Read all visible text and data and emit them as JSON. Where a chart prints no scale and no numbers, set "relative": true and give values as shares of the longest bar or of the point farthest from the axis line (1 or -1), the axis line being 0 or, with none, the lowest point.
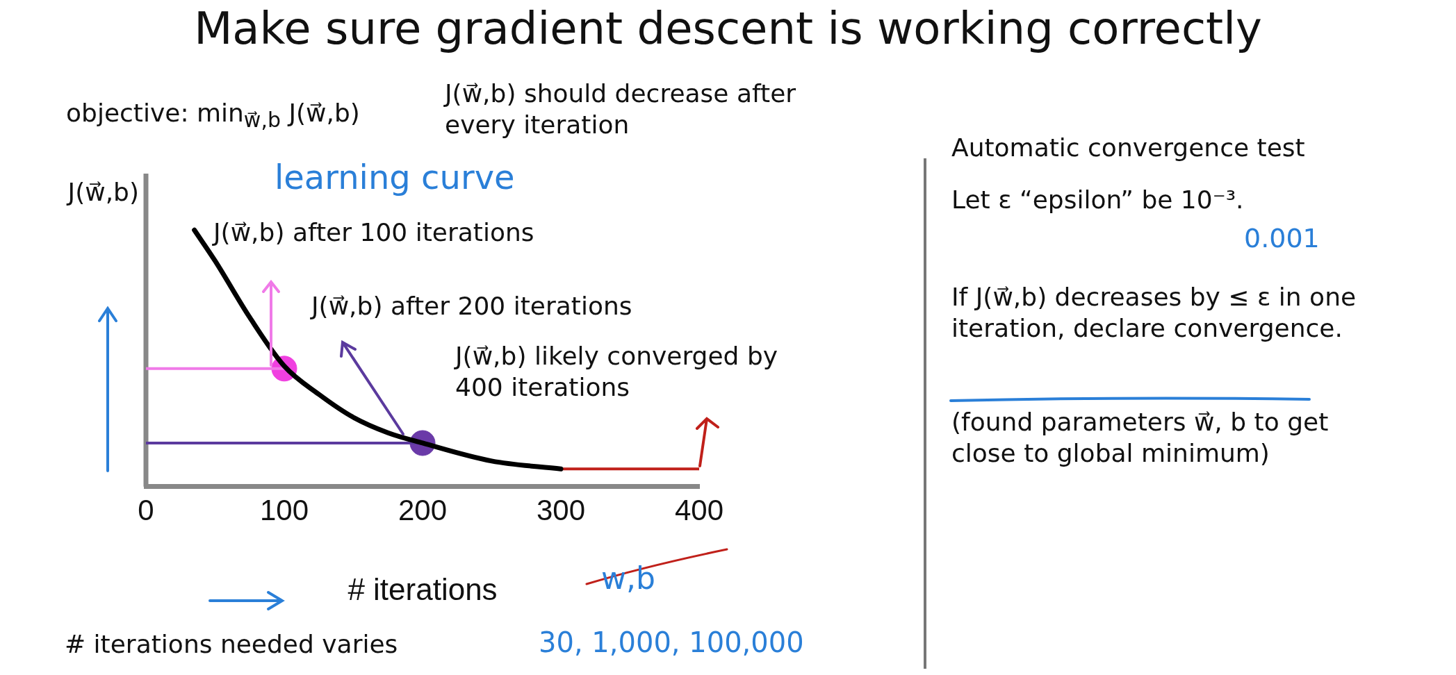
{
  "chart_data": {
    "type": "line",
    "title": "Make sure gradient descent is working correctly",
    "xlabel": "# iterations",
    "ylabel": "J(w⃗,b)",
    "relative": true,
    "xlim": [
      0,
      400
    ],
    "ref_lines": [
      {
        "axis": "x",
        "value": 0,
        "color": "#888888",
        "line_style": "solid"
      }
    ],
    "xticks": [
      0,
      100,
      200,
      300,
      400
    ],
    "grid": false,
    "legend": false,
    "marker": "none",
    "line_style": "solid",
    "series": [
      {
        "color": "#000000",
        "x": [
          35,
          50,
          75,
          100,
          125,
          150,
          175,
          200,
          250,
          300
        ],
        "values": [
          1.0,
          0.88,
          0.66,
          0.47,
          0.36,
          0.27,
          0.21,
          0.17,
          0.1,
          0.069
        ]
      },
      {
        "color": "#c0201a",
        "x": [
          300,
          400
        ],
        "values": [
          0.069,
          0.069
        ]
      },
      {
        "color": "#f07ae8",
        "x": [
          0,
          100
        ],
        "values": [
          0.46,
          0.46
        ]
      },
      {
        "color": "#5b3a9e",
        "x": [
          0,
          200
        ],
        "values": [
          0.17,
          0.17
        ]
      },
      {
        "type": "scatter",
        "marker": "circle",
        "x": [
          100,
          200
        ],
        "values": [
          0.46,
          0.17
        ],
        "colors": [
          "#f040e0",
          "#6a3aa8"
        ]
      }
    ],
    "annotations": [
      "objective: min$_{w⃗,b}$ J(w⃗,b)",
      "J(w⃗,b) should decrease after every iteration",
      "learning curve",
      "w,b",
      "# iterations needed varies",
      "30, 1,000, 100,000",
      "Automatic convergence test",
      "Let ε “epsilon” be 10⁻³.",
      "0.001",
      "If J(w⃗,b) decreases by ≤ ε in one iteration, declare convergence.",
      "(found parameters w⃗, b to get close to global minimum)",
      "J(w⃗,b) after 100 iterations",
      "J(w⃗,b) after 200 iterations",
      "J(w⃗,b) likely converged by 400 iterations"
    ]
  }
}
